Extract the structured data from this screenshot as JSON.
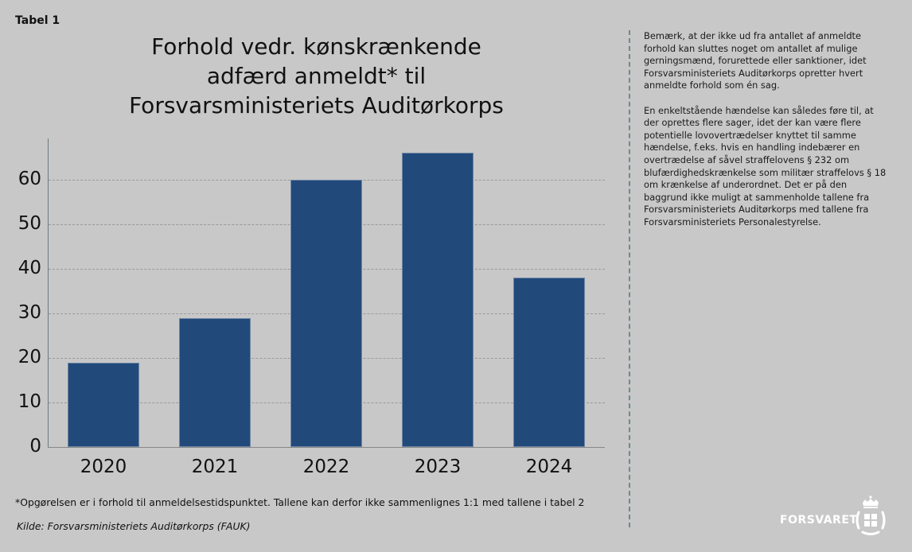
{
  "header": {
    "label": "Tabel 1",
    "title_lines": [
      "Forhold vedr. kønskrænkende",
      "adfærd anmeldt* til",
      "Forsvarsministeriets Auditørkorps"
    ]
  },
  "chart_data": {
    "type": "bar",
    "title": "Forhold vedr. kønskrænkende adfærd anmeldt* til Forsvarsministeriets Auditørkorps",
    "categories": [
      "2020",
      "2021",
      "2022",
      "2023",
      "2024"
    ],
    "values": [
      19,
      29,
      60,
      66,
      38
    ],
    "xlabel": "",
    "ylabel": "",
    "ylim": [
      0,
      69
    ],
    "yticks": [
      0,
      10,
      20,
      30,
      40,
      50,
      60
    ],
    "grid": true,
    "legend": "none",
    "bar_color": "#214a7b"
  },
  "notes": {
    "paragraphs": [
      "Bemærk, at der ikke ud fra antallet af anmeldte forhold kan sluttes noget om antallet af mulige gerningsmænd, forurettede eller sanktioner, idet Forsvarsministeriets Auditørkorps opretter hvert anmeldte forhold som én sag.",
      "En enkeltstående hændelse kan således føre til, at der oprettes flere sager, idet der kan være flere potentielle lovovertrædelser knyttet til samme hændelse, f.eks. hvis en handling indebærer en overtrædelse af såvel straffelovens § 232 om blufærdighedskrænkelse som militær straffelovs § 18 om krænkelse af underordnet. Det er på den baggrund ikke muligt at sammenholde tallene fra Forsvarsministeriets Auditørkorps med tallene fra Forsvarsministeriets Personalestyrelse."
    ]
  },
  "footer": {
    "footnote": "*Opgørelsen er i forhold til anmeldelsestidspunktet. Tallene kan derfor ikke sammenlignes 1:1 med tallene i tabel 2",
    "source": "Kilde: Forsvarsministeriets Auditørkorps (FAUK)"
  },
  "logo": {
    "text": "FORSVARET",
    "icon": "crown-shield-emblem-icon"
  }
}
